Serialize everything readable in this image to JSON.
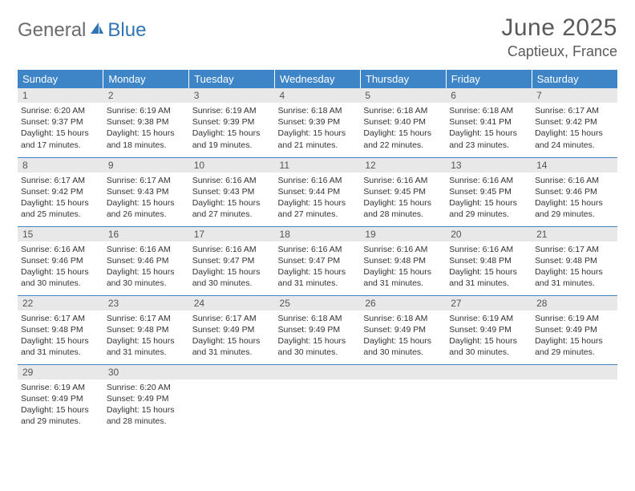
{
  "logo": {
    "text1": "General",
    "text2": "Blue"
  },
  "header": {
    "title": "June 2025",
    "location": "Captieux, France"
  },
  "colors": {
    "header_bg": "#3d85c6",
    "header_text": "#ffffff",
    "daynum_bg": "#e8e8e8",
    "border": "#3d85c6",
    "logo_gray": "#6b6b6b",
    "logo_blue": "#2f75b5",
    "title_gray": "#5a5a5a"
  },
  "weekdays": [
    "Sunday",
    "Monday",
    "Tuesday",
    "Wednesday",
    "Thursday",
    "Friday",
    "Saturday"
  ],
  "days": [
    {
      "n": "1",
      "sr": "6:20 AM",
      "ss": "9:37 PM",
      "dl": "15 hours and 17 minutes."
    },
    {
      "n": "2",
      "sr": "6:19 AM",
      "ss": "9:38 PM",
      "dl": "15 hours and 18 minutes."
    },
    {
      "n": "3",
      "sr": "6:19 AM",
      "ss": "9:39 PM",
      "dl": "15 hours and 19 minutes."
    },
    {
      "n": "4",
      "sr": "6:18 AM",
      "ss": "9:39 PM",
      "dl": "15 hours and 21 minutes."
    },
    {
      "n": "5",
      "sr": "6:18 AM",
      "ss": "9:40 PM",
      "dl": "15 hours and 22 minutes."
    },
    {
      "n": "6",
      "sr": "6:18 AM",
      "ss": "9:41 PM",
      "dl": "15 hours and 23 minutes."
    },
    {
      "n": "7",
      "sr": "6:17 AM",
      "ss": "9:42 PM",
      "dl": "15 hours and 24 minutes."
    },
    {
      "n": "8",
      "sr": "6:17 AM",
      "ss": "9:42 PM",
      "dl": "15 hours and 25 minutes."
    },
    {
      "n": "9",
      "sr": "6:17 AM",
      "ss": "9:43 PM",
      "dl": "15 hours and 26 minutes."
    },
    {
      "n": "10",
      "sr": "6:16 AM",
      "ss": "9:43 PM",
      "dl": "15 hours and 27 minutes."
    },
    {
      "n": "11",
      "sr": "6:16 AM",
      "ss": "9:44 PM",
      "dl": "15 hours and 27 minutes."
    },
    {
      "n": "12",
      "sr": "6:16 AM",
      "ss": "9:45 PM",
      "dl": "15 hours and 28 minutes."
    },
    {
      "n": "13",
      "sr": "6:16 AM",
      "ss": "9:45 PM",
      "dl": "15 hours and 29 minutes."
    },
    {
      "n": "14",
      "sr": "6:16 AM",
      "ss": "9:46 PM",
      "dl": "15 hours and 29 minutes."
    },
    {
      "n": "15",
      "sr": "6:16 AM",
      "ss": "9:46 PM",
      "dl": "15 hours and 30 minutes."
    },
    {
      "n": "16",
      "sr": "6:16 AM",
      "ss": "9:46 PM",
      "dl": "15 hours and 30 minutes."
    },
    {
      "n": "17",
      "sr": "6:16 AM",
      "ss": "9:47 PM",
      "dl": "15 hours and 30 minutes."
    },
    {
      "n": "18",
      "sr": "6:16 AM",
      "ss": "9:47 PM",
      "dl": "15 hours and 31 minutes."
    },
    {
      "n": "19",
      "sr": "6:16 AM",
      "ss": "9:48 PM",
      "dl": "15 hours and 31 minutes."
    },
    {
      "n": "20",
      "sr": "6:16 AM",
      "ss": "9:48 PM",
      "dl": "15 hours and 31 minutes."
    },
    {
      "n": "21",
      "sr": "6:17 AM",
      "ss": "9:48 PM",
      "dl": "15 hours and 31 minutes."
    },
    {
      "n": "22",
      "sr": "6:17 AM",
      "ss": "9:48 PM",
      "dl": "15 hours and 31 minutes."
    },
    {
      "n": "23",
      "sr": "6:17 AM",
      "ss": "9:48 PM",
      "dl": "15 hours and 31 minutes."
    },
    {
      "n": "24",
      "sr": "6:17 AM",
      "ss": "9:49 PM",
      "dl": "15 hours and 31 minutes."
    },
    {
      "n": "25",
      "sr": "6:18 AM",
      "ss": "9:49 PM",
      "dl": "15 hours and 30 minutes."
    },
    {
      "n": "26",
      "sr": "6:18 AM",
      "ss": "9:49 PM",
      "dl": "15 hours and 30 minutes."
    },
    {
      "n": "27",
      "sr": "6:19 AM",
      "ss": "9:49 PM",
      "dl": "15 hours and 30 minutes."
    },
    {
      "n": "28",
      "sr": "6:19 AM",
      "ss": "9:49 PM",
      "dl": "15 hours and 29 minutes."
    },
    {
      "n": "29",
      "sr": "6:19 AM",
      "ss": "9:49 PM",
      "dl": "15 hours and 29 minutes."
    },
    {
      "n": "30",
      "sr": "6:20 AM",
      "ss": "9:49 PM",
      "dl": "15 hours and 28 minutes."
    }
  ],
  "labels": {
    "sunrise": "Sunrise: ",
    "sunset": "Sunset: ",
    "daylight": "Daylight: "
  },
  "layout": {
    "start_weekday": 0,
    "total_cells": 35
  }
}
